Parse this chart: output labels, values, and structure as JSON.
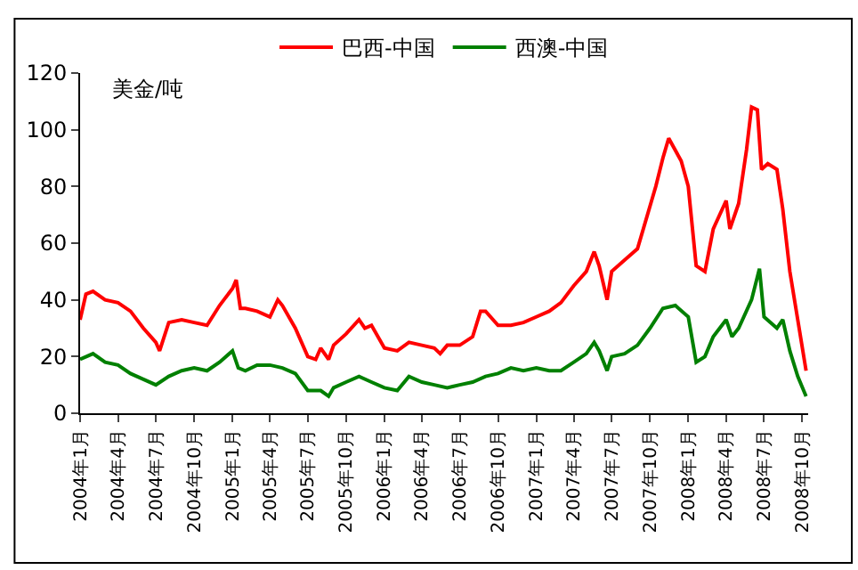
{
  "chart_data": {
    "type": "line",
    "ylabel": "美金/吨",
    "legend": "top",
    "marker": "none",
    "line_style": "solid",
    "xlim": [
      "2004-01-01",
      "2008-10-15"
    ],
    "ylim": [
      0,
      120
    ],
    "yticks": [
      0,
      20,
      40,
      60,
      80,
      100,
      120
    ],
    "xticks": [
      {
        "value": "2004-01-01",
        "label": "2004年1月"
      },
      {
        "value": "2004-04-01",
        "label": "2004年4月"
      },
      {
        "value": "2004-07-01",
        "label": "2004年7月"
      },
      {
        "value": "2004-10-01",
        "label": "2004年10月"
      },
      {
        "value": "2005-01-01",
        "label": "2005年1月"
      },
      {
        "value": "2005-04-01",
        "label": "2005年4月"
      },
      {
        "value": "2005-07-01",
        "label": "2005年7月"
      },
      {
        "value": "2005-10-01",
        "label": "2005年10月"
      },
      {
        "value": "2006-01-01",
        "label": "2006年1月"
      },
      {
        "value": "2006-04-01",
        "label": "2006年4月"
      },
      {
        "value": "2006-07-01",
        "label": "2006年7月"
      },
      {
        "value": "2006-10-01",
        "label": "2006年10月"
      },
      {
        "value": "2007-01-01",
        "label": "2007年1月"
      },
      {
        "value": "2007-04-01",
        "label": "2007年4月"
      },
      {
        "value": "2007-07-01",
        "label": "2007年7月"
      },
      {
        "value": "2007-10-01",
        "label": "2007年10月"
      },
      {
        "value": "2008-01-01",
        "label": "2008年1月"
      },
      {
        "value": "2008-04-01",
        "label": "2008年4月"
      },
      {
        "value": "2008-07-01",
        "label": "2008年7月"
      },
      {
        "value": "2008-10-01",
        "label": "2008年10月"
      }
    ],
    "series": [
      {
        "name": "巴西-中国",
        "color": "#ff0000",
        "x": [
          "2004-01-01",
          "2004-01-15",
          "2004-02-01",
          "2004-03-01",
          "2004-04-01",
          "2004-05-01",
          "2004-06-01",
          "2004-07-01",
          "2004-07-10",
          "2004-08-01",
          "2004-09-01",
          "2004-10-01",
          "2004-11-01",
          "2004-12-01",
          "2005-01-01",
          "2005-01-10",
          "2005-01-20",
          "2005-02-01",
          "2005-03-01",
          "2005-04-01",
          "2005-04-20",
          "2005-05-01",
          "2005-06-01",
          "2005-07-01",
          "2005-07-20",
          "2005-08-01",
          "2005-08-20",
          "2005-09-01",
          "2005-10-01",
          "2005-11-01",
          "2005-11-15",
          "2005-12-01",
          "2006-01-01",
          "2006-02-01",
          "2006-03-01",
          "2006-04-01",
          "2006-05-01",
          "2006-05-15",
          "2006-06-01",
          "2006-07-01",
          "2006-08-01",
          "2006-08-20",
          "2006-09-01",
          "2006-10-01",
          "2006-11-01",
          "2006-12-01",
          "2007-01-01",
          "2007-02-01",
          "2007-03-01",
          "2007-04-01",
          "2007-05-01",
          "2007-05-20",
          "2007-06-01",
          "2007-06-20",
          "2007-07-01",
          "2007-08-01",
          "2007-09-01",
          "2007-10-15",
          "2007-11-01",
          "2007-11-15",
          "2007-12-15",
          "2008-01-01",
          "2008-01-20",
          "2008-02-10",
          "2008-03-01",
          "2008-04-01",
          "2008-04-10",
          "2008-05-01",
          "2008-05-20",
          "2008-06-01",
          "2008-06-15",
          "2008-06-25",
          "2008-07-10",
          "2008-08-01",
          "2008-08-15",
          "2008-09-01",
          "2008-09-20",
          "2008-10-10"
        ],
        "values": [
          33,
          42,
          43,
          40,
          39,
          36,
          30,
          25,
          22,
          32,
          33,
          32,
          31,
          38,
          44,
          47,
          37,
          37,
          36,
          34,
          40,
          38,
          30,
          20,
          19,
          23,
          19,
          24,
          28,
          33,
          30,
          31,
          23,
          22,
          25,
          24,
          23,
          21,
          24,
          24,
          27,
          36,
          36,
          31,
          31,
          32,
          34,
          36,
          39,
          45,
          50,
          57,
          52,
          40,
          50,
          54,
          58,
          80,
          90,
          97,
          89,
          80,
          52,
          50,
          65,
          75,
          65,
          74,
          93,
          108,
          107,
          86,
          88,
          86,
          72,
          50,
          33,
          15
        ]
      },
      {
        "name": "西澳-中国",
        "color": "#008000",
        "x": [
          "2004-01-01",
          "2004-02-01",
          "2004-03-01",
          "2004-04-01",
          "2004-05-01",
          "2004-06-01",
          "2004-07-01",
          "2004-08-01",
          "2004-09-01",
          "2004-10-01",
          "2004-11-01",
          "2004-12-01",
          "2005-01-01",
          "2005-01-15",
          "2005-02-01",
          "2005-03-01",
          "2005-04-01",
          "2005-05-01",
          "2005-06-01",
          "2005-07-01",
          "2005-08-01",
          "2005-08-20",
          "2005-09-01",
          "2005-10-01",
          "2005-11-01",
          "2005-12-01",
          "2006-01-01",
          "2006-02-01",
          "2006-03-01",
          "2006-04-01",
          "2006-05-01",
          "2006-06-01",
          "2006-07-01",
          "2006-08-01",
          "2006-09-01",
          "2006-10-01",
          "2006-11-01",
          "2006-12-01",
          "2007-01-01",
          "2007-02-01",
          "2007-03-01",
          "2007-04-01",
          "2007-05-01",
          "2007-05-20",
          "2007-06-01",
          "2007-06-20",
          "2007-07-01",
          "2007-08-01",
          "2007-09-01",
          "2007-10-01",
          "2007-11-01",
          "2007-12-01",
          "2008-01-01",
          "2008-01-20",
          "2008-02-10",
          "2008-03-01",
          "2008-04-01",
          "2008-04-15",
          "2008-05-01",
          "2008-06-01",
          "2008-06-20",
          "2008-07-01",
          "2008-08-01",
          "2008-08-15",
          "2008-09-01",
          "2008-09-20",
          "2008-10-10"
        ],
        "values": [
          19,
          21,
          18,
          17,
          14,
          12,
          10,
          13,
          15,
          16,
          15,
          18,
          22,
          16,
          15,
          17,
          17,
          16,
          14,
          8,
          8,
          6,
          9,
          11,
          13,
          11,
          9,
          8,
          13,
          11,
          10,
          9,
          10,
          11,
          13,
          14,
          16,
          15,
          16,
          15,
          15,
          18,
          21,
          25,
          22,
          15,
          20,
          21,
          24,
          30,
          37,
          38,
          34,
          18,
          20,
          27,
          33,
          27,
          30,
          40,
          51,
          34,
          30,
          33,
          22,
          13,
          6
        ]
      }
    ]
  }
}
